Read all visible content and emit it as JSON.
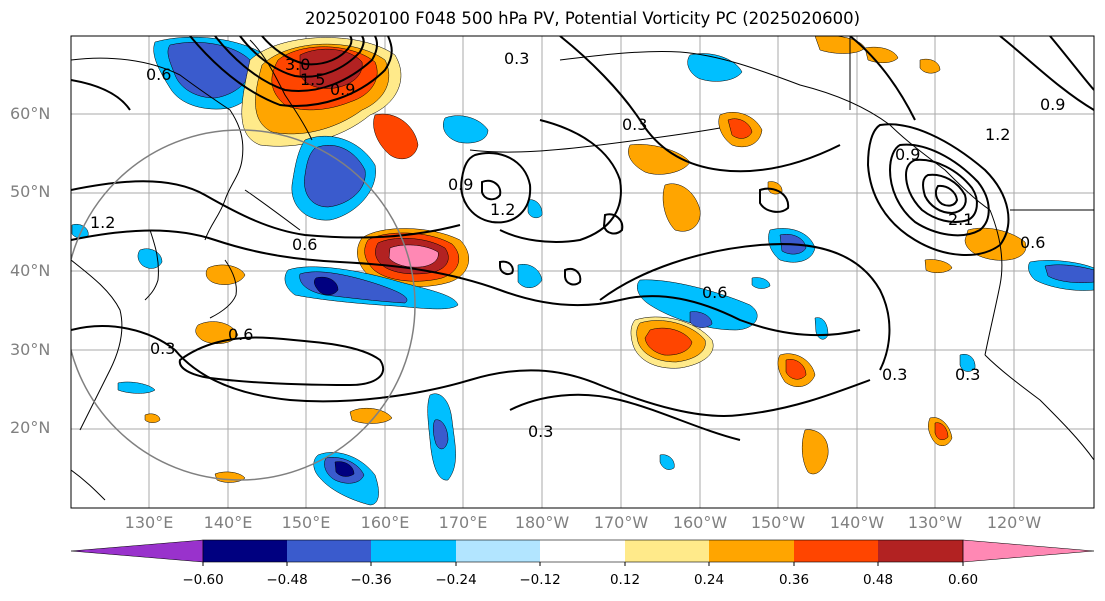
{
  "title": "2025020100 F048 500 hPa PV, Potential Vorticity PC (2025020600)",
  "lat_labels": [
    "60°N",
    "50°N",
    "40°N",
    "30°N",
    "20°N"
  ],
  "lon_labels": [
    "130°E",
    "140°E",
    "150°E",
    "160°E",
    "170°E",
    "180°W",
    "170°W",
    "160°W",
    "150°W",
    "140°W",
    "130°W",
    "120°W"
  ],
  "colorbar": {
    "ticks": [
      "−0.60",
      "−0.48",
      "−0.36",
      "−0.24",
      "−0.12",
      "0.12",
      "0.24",
      "0.36",
      "0.48",
      "0.60"
    ],
    "colors": [
      "#9932cc",
      "#000080",
      "#3a5bcd",
      "#00bfff",
      "#b2e5ff",
      "#ffffff",
      "#ffea8a",
      "#ffa500",
      "#ff4500",
      "#b22222",
      "#ff88b4"
    ]
  },
  "contour_labels": [
    "0.6",
    "0.3",
    "0.9",
    "1.2",
    "2.1",
    "1.5",
    "3.0"
  ],
  "colors": {
    "grid": "#aaaaaa",
    "coast": "#000000",
    "contour": "#000000",
    "circle": "#808080"
  }
}
